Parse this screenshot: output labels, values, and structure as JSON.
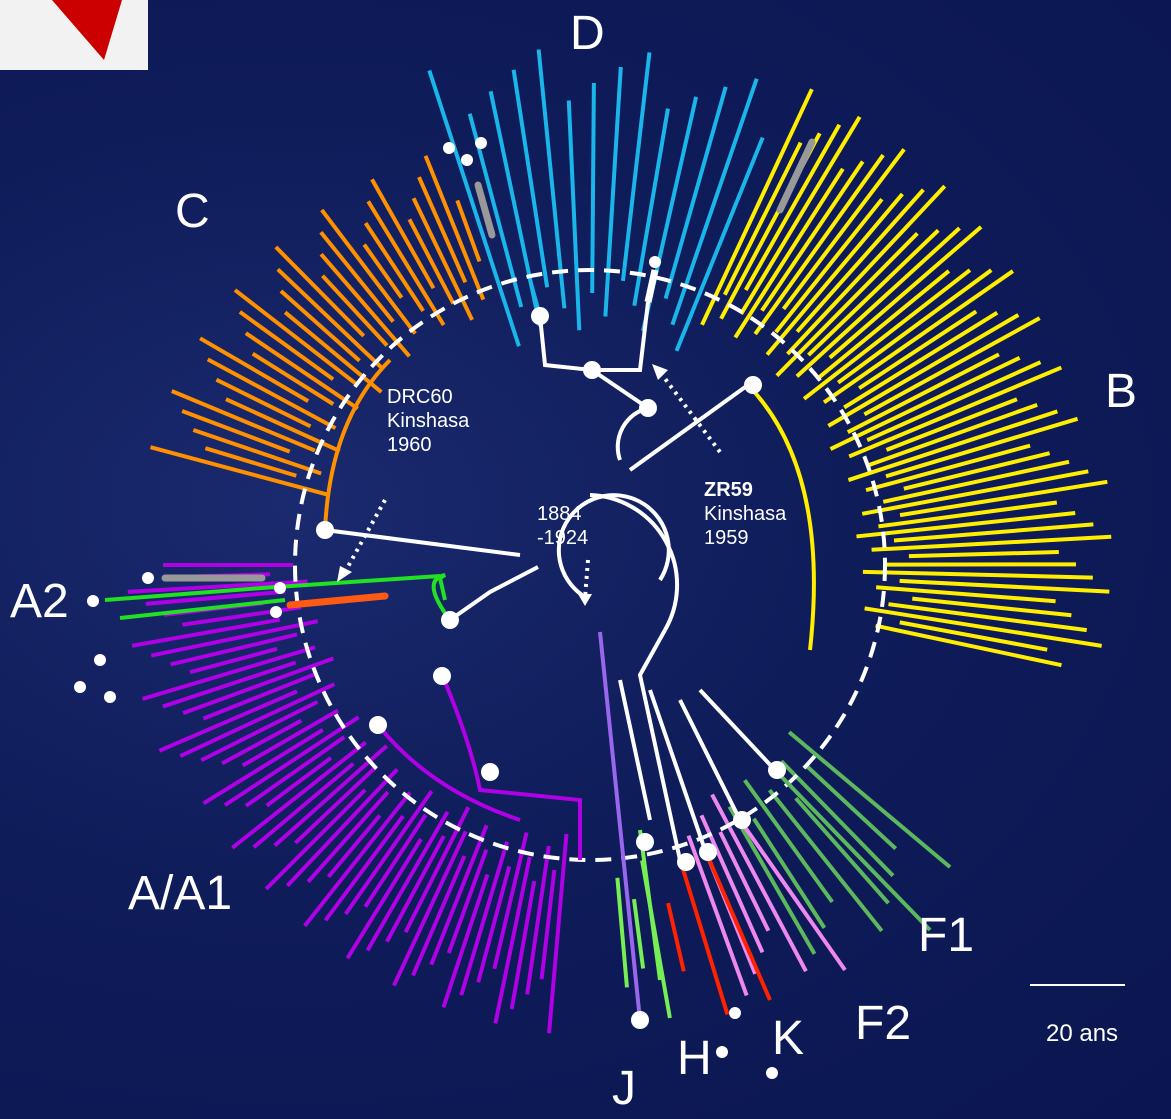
{
  "clades": {
    "A_A1": {
      "label": "A/A1",
      "color": "#b000e6"
    },
    "A2": {
      "label": "A2",
      "color": "#22e022"
    },
    "B": {
      "label": "B",
      "color": "#ffee00"
    },
    "C": {
      "label": "C",
      "color": "#ff9000"
    },
    "D": {
      "label": "D",
      "color": "#1ab6ea"
    },
    "F1": {
      "label": "F1",
      "color": "#5cb85c"
    },
    "F2": {
      "label": "F2",
      "color": "#ee88ee"
    },
    "H": {
      "label": "H",
      "color": "#77ee55"
    },
    "J": {
      "label": "J",
      "color": "#9966ee"
    },
    "K": {
      "label": "K",
      "color": "#ff2200"
    }
  },
  "annotations": {
    "root": {
      "line1": "1884",
      "line2": "-1924"
    },
    "drc60": {
      "line1": "DRC60",
      "line2": "Kinshasa",
      "line3": "1960"
    },
    "zr59": {
      "line1": "ZR59",
      "line2": "Kinshasa",
      "line3": "1959"
    }
  },
  "scale_bar": {
    "label": "20 ans"
  },
  "colors": {
    "background": "#0f1c5a",
    "tree_lines": "#ffffff",
    "grey_marker": "#999999",
    "orange_marker": "#ff5a14"
  }
}
